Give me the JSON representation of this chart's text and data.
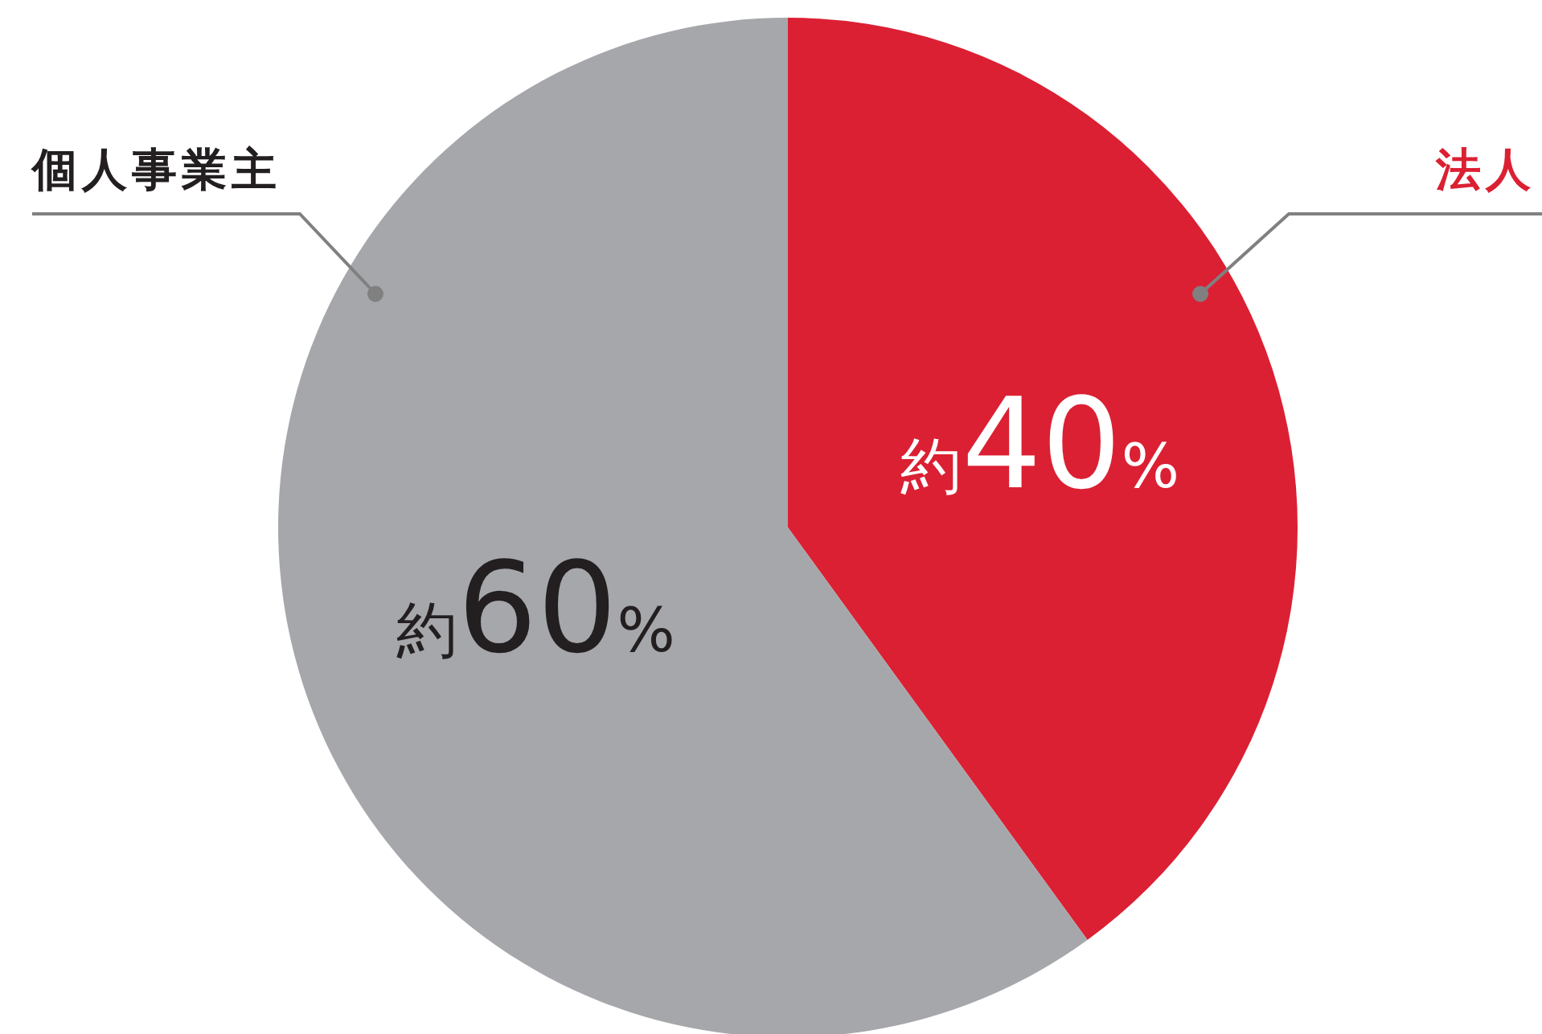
{
  "chart_data": {
    "type": "pie",
    "categories": [
      "法人",
      "個人事業主"
    ],
    "values": [
      40,
      60
    ],
    "colors": [
      "#db2033",
      "#a6a7ab"
    ],
    "value_labels": [
      "約40%",
      "約60%"
    ],
    "legend": false
  }
}
